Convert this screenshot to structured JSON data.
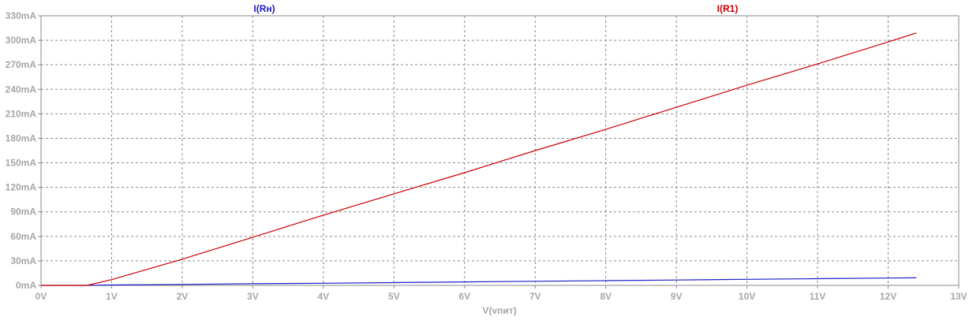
{
  "chart_data": {
    "type": "line",
    "xlabel": "V(vпит)",
    "ylabel": "",
    "xlim": [
      0,
      13
    ],
    "ylim": [
      0,
      330
    ],
    "x_ticks": [
      0,
      1,
      2,
      3,
      4,
      5,
      6,
      7,
      8,
      9,
      10,
      11,
      12,
      13
    ],
    "x_tick_labels": [
      "0V",
      "1V",
      "2V",
      "3V",
      "4V",
      "5V",
      "6V",
      "7V",
      "8V",
      "9V",
      "10V",
      "11V",
      "12V",
      "13V"
    ],
    "y_ticks": [
      0,
      30,
      60,
      90,
      120,
      150,
      180,
      210,
      240,
      270,
      300,
      330
    ],
    "y_tick_labels": [
      "0mA",
      "30mA",
      "60mA",
      "90mA",
      "120mA",
      "150mA",
      "180mA",
      "210mA",
      "240mA",
      "270mA",
      "300mA",
      "330mA"
    ],
    "grid": true,
    "legend": "top (trace names above plot)",
    "series": [
      {
        "name": "I(Rн)",
        "color": "#1c1cc8",
        "points": [
          [
            0,
            0
          ],
          [
            0.65,
            0
          ],
          [
            1,
            0.5
          ],
          [
            2,
            1.2
          ],
          [
            3,
            2
          ],
          [
            4,
            2.6
          ],
          [
            5,
            3.4
          ],
          [
            6,
            4.2
          ],
          [
            7,
            5
          ],
          [
            8,
            5.8
          ],
          [
            9,
            6.6
          ],
          [
            10,
            7.4
          ],
          [
            11,
            8.2
          ],
          [
            12,
            9
          ],
          [
            12.4,
            9.3
          ]
        ]
      },
      {
        "name": "I(R1)",
        "color": "#cc0000",
        "points": [
          [
            0,
            0
          ],
          [
            0.65,
            0
          ],
          [
            1,
            7
          ],
          [
            2,
            32
          ],
          [
            3,
            59
          ],
          [
            4,
            86
          ],
          [
            5,
            112
          ],
          [
            6,
            138
          ],
          [
            7,
            165
          ],
          [
            8,
            191
          ],
          [
            9,
            218
          ],
          [
            10,
            245
          ],
          [
            11,
            271
          ],
          [
            12,
            298
          ],
          [
            12.4,
            309
          ]
        ]
      }
    ]
  }
}
